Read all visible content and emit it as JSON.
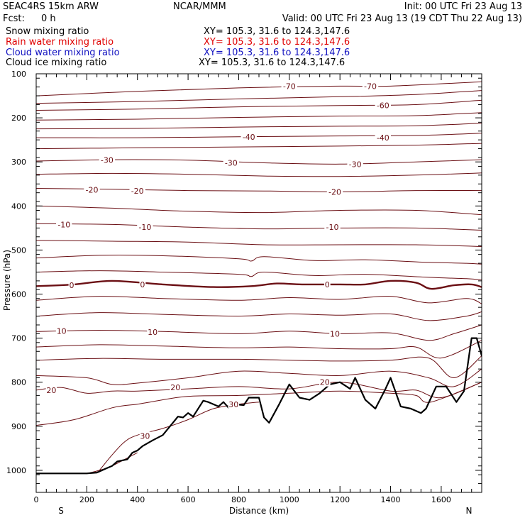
{
  "header": {
    "model": "SEAC4RS 15km ARW",
    "org": "NCAR/MMM",
    "init": "Init: 00 UTC Fri 23 Aug 13",
    "fcst_label": "Fcst:",
    "fcst_value": "0 h",
    "valid": "Valid: 00 UTC Fri 23 Aug 13 (19 CDT Thu 22 Aug 13)"
  },
  "fields": [
    {
      "name": "Snow mixing ratio",
      "xy": "XY= 105.3, 31.6 to 124.3,147.6",
      "color": "#000000"
    },
    {
      "name": "Rain water mixing ratio",
      "xy": "XY= 105.3, 31.6 to 124.3,147.6",
      "color": "#e00000"
    },
    {
      "name": "Cloud water mixing ratio",
      "xy": "XY= 105.3, 31.6 to 124.3,147.6",
      "color": "#1010c0"
    },
    {
      "name": "Cloud ice mixing ratio",
      "xy": "XY= 105.3, 31.6 to 124.3,147.6",
      "color": "#000000"
    }
  ],
  "colors": {
    "contour": "#6b0f14",
    "terrain": "#000000"
  },
  "chart_data": {
    "type": "line",
    "xlabel": "Distance (km)",
    "ylabel": "Pressure (hPa)",
    "xlim": [
      0,
      1760
    ],
    "ylim": [
      1050,
      100
    ],
    "xticks": [
      0,
      200,
      400,
      600,
      800,
      1000,
      1200,
      1400,
      1600
    ],
    "yticks": [
      1000,
      900,
      800,
      700,
      600,
      500,
      400,
      300,
      200,
      100
    ],
    "ytick_labels": [
      "1000",
      "900",
      "800",
      "700",
      "600",
      "500",
      "400",
      "300",
      "200",
      "100"
    ],
    "left_end_label": "S",
    "right_end_label": "N",
    "terrain": {
      "name": "terrain",
      "x": [
        0,
        100,
        200,
        240,
        280,
        300,
        320,
        360,
        380,
        400,
        420,
        460,
        500,
        540,
        560,
        580,
        600,
        620,
        660,
        680,
        720,
        740,
        760,
        780,
        820,
        840,
        880,
        900,
        920,
        960,
        1000,
        1040,
        1080,
        1120,
        1160,
        1200,
        1240,
        1260,
        1300,
        1340,
        1380,
        1400,
        1440,
        1480,
        1520,
        1540,
        1580,
        1620,
        1660,
        1690,
        1720,
        1740,
        1760
      ],
      "p": [
        1007,
        1007,
        1007,
        1005,
        995,
        990,
        980,
        975,
        960,
        955,
        945,
        932,
        920,
        892,
        878,
        880,
        870,
        878,
        842,
        845,
        855,
        845,
        858,
        850,
        852,
        835,
        835,
        880,
        892,
        850,
        805,
        835,
        840,
        825,
        805,
        800,
        815,
        790,
        840,
        860,
        815,
        790,
        855,
        860,
        870,
        860,
        810,
        810,
        845,
        820,
        700,
        700,
        740
      ]
    },
    "contours": [
      {
        "level": "-70",
        "x": [
          0,
          400,
          800,
          1200,
          1400,
          1760
        ],
        "p": [
          150,
          140,
          132,
          128,
          128,
          118
        ]
      },
      {
        "level": "",
        "x": [
          0,
          400,
          800,
          1200,
          1500,
          1760
        ],
        "p": [
          167,
          163,
          157,
          152,
          147,
          138
        ]
      },
      {
        "level": "-60",
        "x": [
          0,
          400,
          800,
          1200,
          1500,
          1760
        ],
        "p": [
          183,
          180,
          175,
          172,
          170,
          160
        ]
      },
      {
        "level": "",
        "x": [
          0,
          400,
          800,
          1200,
          1500,
          1760
        ],
        "p": [
          205,
          203,
          199,
          196,
          195,
          188
        ]
      },
      {
        "level": "",
        "x": [
          0,
          400,
          800,
          1200,
          1500,
          1760
        ],
        "p": [
          225,
          224,
          221,
          219,
          218,
          212
        ]
      },
      {
        "level": "-40",
        "x": [
          0,
          400,
          800,
          1200,
          1500,
          1760
        ],
        "p": [
          245,
          245,
          243,
          241,
          240,
          235
        ]
      },
      {
        "level": "",
        "x": [
          0,
          400,
          800,
          1200,
          1500,
          1760
        ],
        "p": [
          270,
          268,
          266,
          264,
          262,
          258
        ]
      },
      {
        "level": "-30",
        "x": [
          0,
          300,
          600,
          900,
          1200,
          1500,
          1760
        ],
        "p": [
          298,
          295,
          296,
          302,
          305,
          300,
          295
        ]
      },
      {
        "level": "",
        "x": [
          0,
          300,
          600,
          900,
          1200,
          1500,
          1760
        ],
        "p": [
          328,
          326,
          328,
          332,
          333,
          330,
          325
        ]
      },
      {
        "level": "-20",
        "x": [
          0,
          300,
          600,
          900,
          1200,
          1500,
          1760
        ],
        "p": [
          360,
          362,
          365,
          366,
          368,
          365,
          365
        ]
      },
      {
        "level": "",
        "x": [
          0,
          300,
          600,
          900,
          1200,
          1500,
          1760
        ],
        "p": [
          400,
          405,
          412,
          415,
          410,
          410,
          420
        ]
      },
      {
        "level": "-10",
        "x": [
          0,
          300,
          600,
          900,
          1200,
          1500,
          1760
        ],
        "p": [
          440,
          442,
          448,
          452,
          450,
          450,
          455
        ]
      },
      {
        "level": "",
        "x": [
          0,
          300,
          600,
          900,
          1200,
          1500,
          1760
        ],
        "p": [
          478,
          480,
          482,
          488,
          488,
          488,
          492
        ]
      },
      {
        "level": "",
        "x": [
          0,
          250,
          500,
          800,
          850,
          900,
          1100,
          1300,
          1550,
          1700,
          1760
        ],
        "p": [
          518,
          512,
          513,
          520,
          525,
          515,
          524,
          522,
          528,
          530,
          532
        ]
      },
      {
        "level": "",
        "x": [
          0,
          250,
          500,
          800,
          850,
          900,
          1100,
          1300,
          1550,
          1700,
          1760
        ],
        "p": [
          550,
          547,
          550,
          555,
          560,
          550,
          558,
          555,
          562,
          565,
          568
        ]
      },
      {
        "level": "0",
        "bold": true,
        "x": [
          0,
          150,
          300,
          500,
          700,
          850,
          950,
          1050,
          1200,
          1300,
          1400,
          1500,
          1560,
          1650,
          1720,
          1760
        ],
        "p": [
          582,
          578,
          570,
          578,
          584,
          582,
          576,
          578,
          578,
          578,
          570,
          574,
          588,
          580,
          578,
          584
        ]
      },
      {
        "level": "",
        "x": [
          0,
          250,
          500,
          800,
          1000,
          1200,
          1400,
          1550,
          1700,
          1760
        ],
        "p": [
          614,
          605,
          610,
          614,
          608,
          612,
          605,
          620,
          610,
          622
        ]
      },
      {
        "level": "",
        "x": [
          0,
          250,
          500,
          800,
          1000,
          1200,
          1400,
          1550,
          1700,
          1760
        ],
        "p": [
          650,
          642,
          646,
          650,
          645,
          648,
          645,
          660,
          650,
          640
        ]
      },
      {
        "level": "10",
        "x": [
          0,
          250,
          500,
          800,
          1000,
          1200,
          1400,
          1550,
          1650,
          1760
        ],
        "p": [
          685,
          682,
          685,
          690,
          684,
          690,
          688,
          705,
          690,
          670
        ]
      },
      {
        "level": "",
        "x": [
          0,
          250,
          500,
          800,
          1000,
          1200,
          1400,
          1500,
          1600,
          1760
        ],
        "p": [
          720,
          715,
          718,
          722,
          720,
          724,
          724,
          720,
          745,
          705
        ]
      },
      {
        "level": "",
        "x": [
          0,
          250,
          500,
          800,
          1000,
          1200,
          1400,
          1550,
          1650,
          1760
        ],
        "p": [
          750,
          746,
          748,
          748,
          750,
          752,
          750,
          745,
          790,
          740
        ]
      },
      {
        "level": "",
        "x": [
          0,
          200,
          300,
          400,
          600,
          800,
          1000,
          1200,
          1400,
          1550,
          1650,
          1760
        ],
        "p": [
          785,
          790,
          805,
          802,
          790,
          775,
          780,
          785,
          775,
          790,
          810,
          770
        ]
      },
      {
        "level": "20",
        "x": [
          0,
          100,
          200,
          300,
          400,
          600,
          800,
          1000,
          1200,
          1400,
          1500,
          1600,
          1760
        ],
        "p": [
          818,
          812,
          825,
          820,
          820,
          815,
          810,
          815,
          800,
          820,
          818,
          835,
          800
        ]
      },
      {
        "level": "",
        "x": [
          0,
          150,
          300,
          400,
          450,
          600,
          800,
          1000,
          1200,
          1400,
          1500,
          1560,
          1760
        ],
        "p": [
          898,
          885,
          858,
          850,
          845,
          832,
          830,
          825,
          820,
          825,
          830,
          845,
          800
        ]
      },
      {
        "level": "30",
        "x": [
          250,
          300,
          350,
          400,
          500,
          600,
          700,
          800,
          880
        ],
        "p": [
          1000,
          965,
          935,
          920,
          905,
          885,
          860,
          850,
          845
        ]
      },
      {
        "level": "",
        "x": [
          200,
          250,
          300,
          350,
          400
        ],
        "p": [
          1007,
          1000,
          990,
          975,
          960
        ]
      }
    ],
    "contour_labels": [
      {
        "text": "-70",
        "x": 1000,
        "p": 128
      },
      {
        "text": "-70",
        "x": 1320,
        "p": 128
      },
      {
        "text": "-60",
        "x": 1370,
        "p": 172
      },
      {
        "text": "-40",
        "x": 840,
        "p": 243
      },
      {
        "text": "-40",
        "x": 1370,
        "p": 245
      },
      {
        "text": "-30",
        "x": 280,
        "p": 296
      },
      {
        "text": "-30",
        "x": 770,
        "p": 302
      },
      {
        "text": "-30",
        "x": 1260,
        "p": 305
      },
      {
        "text": "-20",
        "x": 220,
        "p": 363
      },
      {
        "text": "-20",
        "x": 400,
        "p": 366
      },
      {
        "text": "-20",
        "x": 1180,
        "p": 368
      },
      {
        "text": "-10",
        "x": 110,
        "p": 442
      },
      {
        "text": "-10",
        "x": 430,
        "p": 448
      },
      {
        "text": "-10",
        "x": 1170,
        "p": 448
      },
      {
        "text": "0",
        "x": 140,
        "p": 580
      },
      {
        "text": "0",
        "x": 420,
        "p": 578
      },
      {
        "text": "0",
        "x": 1150,
        "p": 578
      },
      {
        "text": "10",
        "x": 100,
        "p": 684
      },
      {
        "text": "10",
        "x": 460,
        "p": 686
      },
      {
        "text": "10",
        "x": 1180,
        "p": 690
      },
      {
        "text": "20",
        "x": 60,
        "p": 818
      },
      {
        "text": "20",
        "x": 550,
        "p": 812
      },
      {
        "text": "20",
        "x": 1140,
        "p": 800
      },
      {
        "text": "30",
        "x": 430,
        "p": 922
      },
      {
        "text": "30",
        "x": 780,
        "p": 850
      }
    ]
  }
}
